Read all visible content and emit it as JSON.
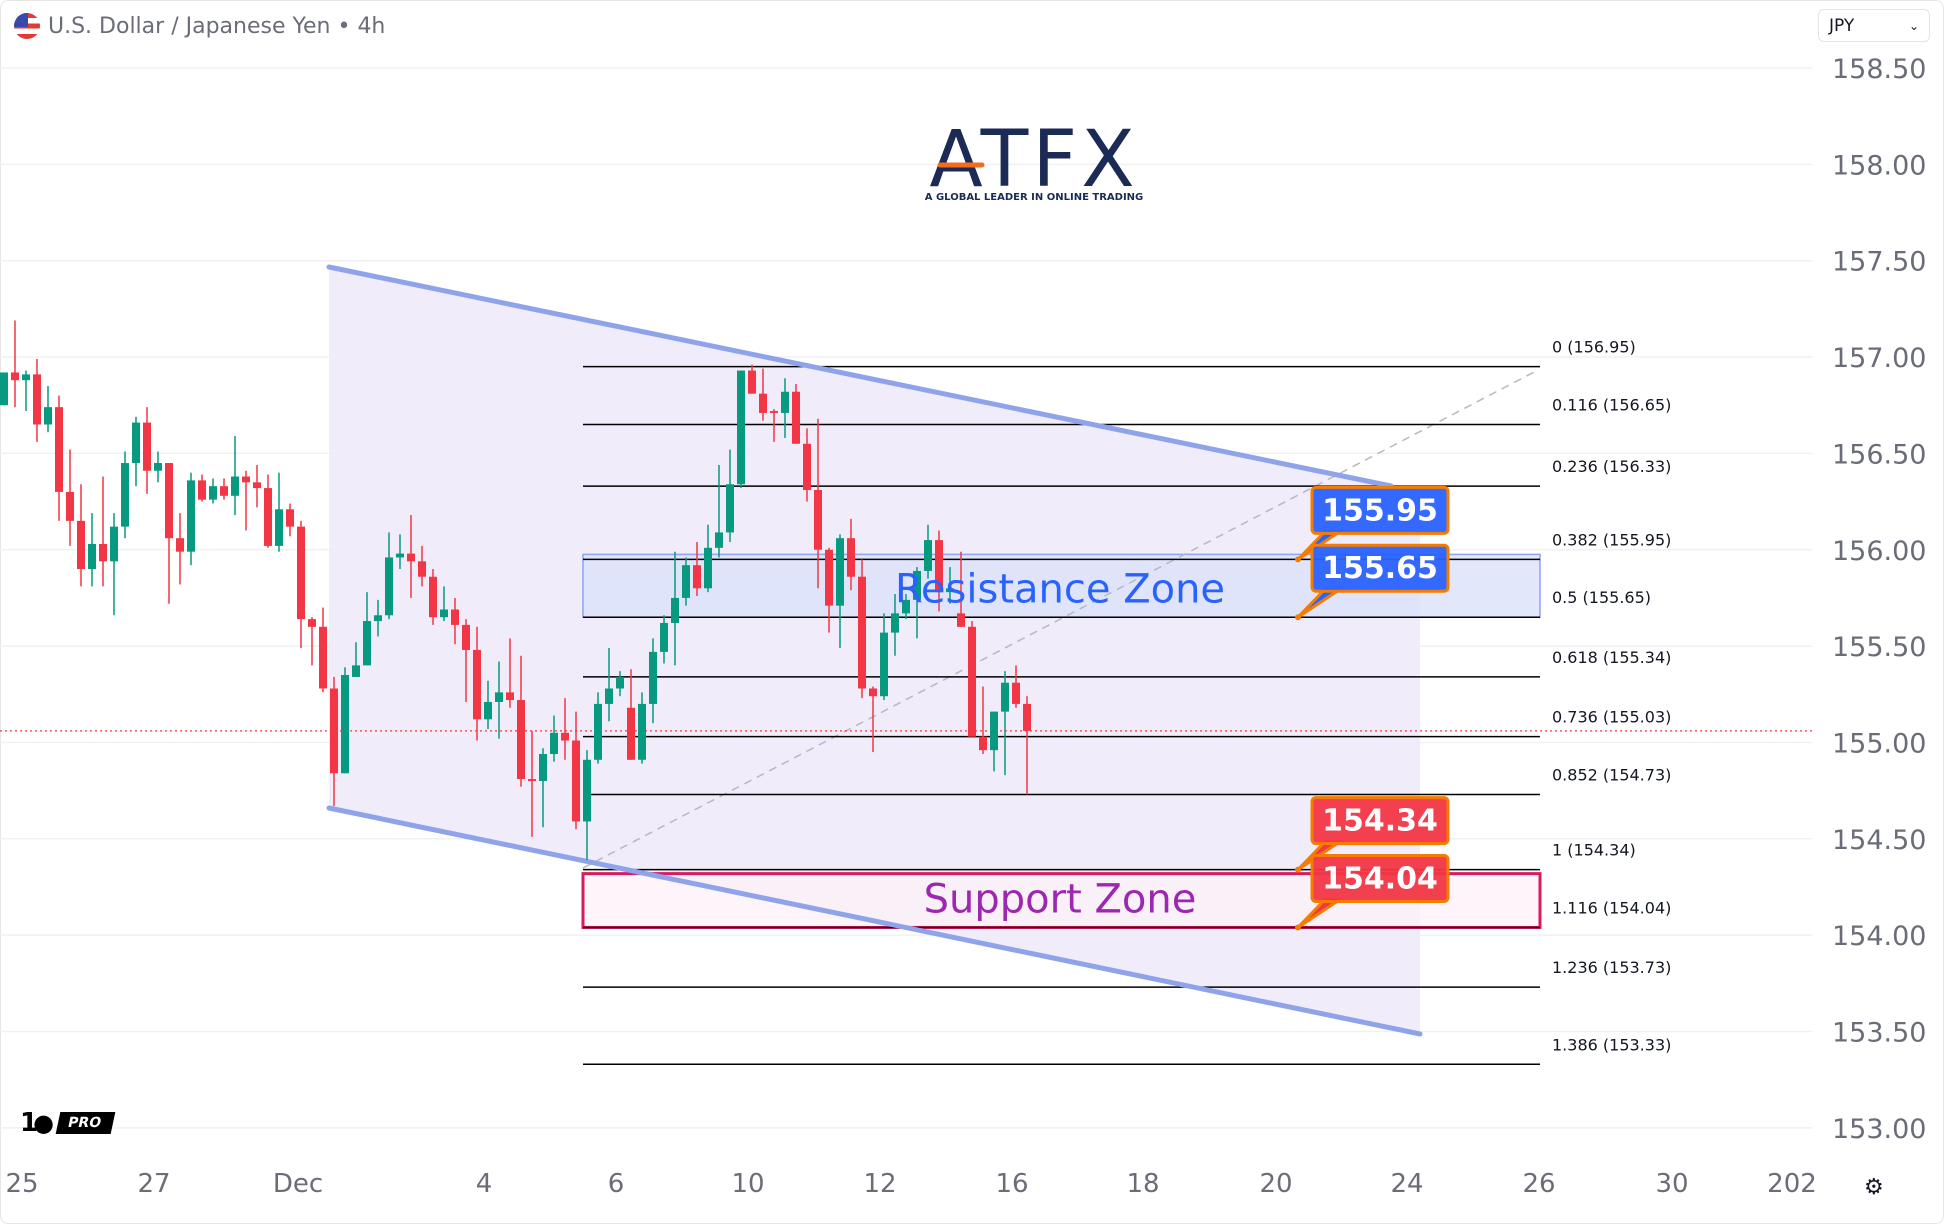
{
  "header": {
    "title": "U.S. Dollar / Japanese Yen • 4h",
    "flag_icon": "us-jp-flag-icon"
  },
  "currency_select": {
    "value": "JPY"
  },
  "logo": {
    "text": "ATFX",
    "tagline": "A GLOBAL LEADER IN ONLINE TRADING",
    "colors": {
      "navy": "#1b2b55",
      "orange": "#f26b21"
    }
  },
  "tv_logo": {
    "mark": "TV",
    "badge": "PRO"
  },
  "settings_icon": "gear-icon",
  "chart_data": {
    "type": "candlestick",
    "symbol": "USDJPY",
    "timeframe": "4h",
    "colors": {
      "up": "#089981",
      "down": "#f23645",
      "channel": "#8fa3ea",
      "channel_fill": "#eeeafa",
      "resistance": "#2962ff",
      "support_border": "#d81b60",
      "support_text": "#9c27b0",
      "callout_border": "#f57c00"
    },
    "ylim": [
      152.8,
      158.7
    ],
    "price_ticks": [
      "158.50",
      "158.00",
      "157.50",
      "157.00",
      "156.50",
      "156.00",
      "155.50",
      "155.00",
      "154.50",
      "154.00",
      "153.50",
      "153.00"
    ],
    "date_ticks": [
      "25",
      "27",
      "Dec",
      "4",
      "6",
      "10",
      "12",
      "16",
      "18",
      "20",
      "24",
      "26",
      "30",
      "202"
    ],
    "last_price": 155.06,
    "ohlc": [
      [
        156.75,
        156.92,
        156.75,
        156.92
      ],
      [
        156.92,
        157.19,
        156.74,
        156.88
      ],
      [
        156.88,
        156.93,
        156.72,
        156.91
      ],
      [
        156.91,
        156.99,
        156.56,
        156.65
      ],
      [
        156.65,
        156.85,
        156.61,
        156.74
      ],
      [
        156.74,
        156.8,
        156.15,
        156.3
      ],
      [
        156.3,
        156.52,
        156.02,
        156.15
      ],
      [
        156.15,
        156.34,
        155.81,
        155.9
      ],
      [
        155.9,
        156.19,
        155.81,
        156.03
      ],
      [
        156.03,
        156.38,
        155.81,
        155.94
      ],
      [
        155.94,
        156.19,
        155.66,
        156.12
      ],
      [
        156.12,
        156.51,
        156.06,
        156.45
      ],
      [
        156.45,
        156.69,
        156.33,
        156.66
      ],
      [
        156.66,
        156.74,
        156.29,
        156.41
      ],
      [
        156.41,
        156.51,
        156.35,
        156.45
      ],
      [
        156.45,
        156.45,
        155.72,
        156.06
      ],
      [
        156.06,
        156.19,
        155.82,
        155.99
      ],
      [
        155.99,
        156.4,
        155.92,
        156.36
      ],
      [
        156.36,
        156.39,
        156.25,
        156.26
      ],
      [
        156.26,
        156.37,
        156.24,
        156.33
      ],
      [
        156.33,
        156.37,
        156.26,
        156.28
      ],
      [
        156.28,
        156.59,
        156.18,
        156.38
      ],
      [
        156.38,
        156.41,
        156.1,
        156.35
      ],
      [
        156.35,
        156.44,
        156.22,
        156.32
      ],
      [
        156.32,
        156.39,
        156.01,
        156.02
      ],
      [
        156.02,
        156.4,
        155.99,
        156.21
      ],
      [
        156.21,
        156.24,
        156.07,
        156.12
      ],
      [
        156.12,
        156.15,
        155.49,
        155.64
      ],
      [
        155.64,
        155.65,
        155.4,
        155.6
      ],
      [
        155.6,
        155.7,
        155.26,
        155.28
      ],
      [
        155.28,
        155.34,
        154.67,
        154.84
      ],
      [
        154.84,
        155.39,
        154.84,
        155.35
      ],
      [
        155.34,
        155.52,
        155.34,
        155.4
      ],
      [
        155.4,
        155.78,
        155.4,
        155.63
      ],
      [
        155.63,
        155.74,
        155.55,
        155.66
      ],
      [
        155.66,
        156.09,
        155.64,
        155.96
      ],
      [
        155.96,
        156.08,
        155.9,
        155.98
      ],
      [
        155.98,
        156.18,
        155.75,
        155.94
      ],
      [
        155.94,
        156.02,
        155.81,
        155.86
      ],
      [
        155.86,
        155.9,
        155.61,
        155.65
      ],
      [
        155.65,
        155.81,
        155.63,
        155.69
      ],
      [
        155.69,
        155.75,
        155.51,
        155.61
      ],
      [
        155.61,
        155.64,
        155.21,
        155.48
      ],
      [
        155.48,
        155.6,
        155.01,
        155.12
      ],
      [
        155.12,
        155.32,
        155.07,
        155.21
      ],
      [
        155.21,
        155.42,
        155.02,
        155.26
      ],
      [
        155.26,
        155.54,
        155.18,
        155.22
      ],
      [
        155.22,
        155.45,
        154.77,
        154.81
      ],
      [
        154.81,
        155.06,
        154.51,
        154.8
      ],
      [
        154.8,
        154.97,
        154.56,
        154.94
      ],
      [
        154.94,
        155.14,
        154.9,
        155.05
      ],
      [
        155.05,
        155.23,
        154.91,
        155.01
      ],
      [
        155.01,
        155.16,
        154.55,
        154.59
      ],
      [
        154.59,
        154.96,
        154.39,
        154.91
      ],
      [
        154.91,
        155.26,
        154.89,
        155.2
      ],
      [
        155.2,
        155.49,
        155.11,
        155.28
      ],
      [
        155.28,
        155.37,
        155.24,
        155.34
      ],
      [
        155.18,
        155.38,
        154.91,
        154.91
      ],
      [
        154.91,
        155.26,
        154.89,
        155.2
      ],
      [
        155.2,
        155.54,
        155.1,
        155.47
      ],
      [
        155.47,
        155.66,
        155.41,
        155.62
      ],
      [
        155.62,
        155.99,
        155.4,
        155.75
      ],
      [
        155.75,
        155.96,
        155.71,
        155.92
      ],
      [
        155.92,
        156.04,
        155.76,
        155.8
      ],
      [
        155.8,
        156.13,
        155.78,
        156.01
      ],
      [
        156.01,
        156.44,
        155.96,
        156.09
      ],
      [
        156.09,
        156.52,
        156.04,
        156.34
      ],
      [
        156.34,
        156.93,
        156.32,
        156.93
      ],
      [
        156.93,
        156.96,
        156.81,
        156.81
      ],
      [
        156.81,
        156.94,
        156.67,
        156.71
      ],
      [
        156.72,
        156.73,
        156.56,
        156.71
      ],
      [
        156.71,
        156.89,
        156.58,
        156.82
      ],
      [
        156.82,
        156.86,
        156.55,
        156.55
      ],
      [
        156.55,
        156.63,
        156.25,
        156.31
      ],
      [
        156.31,
        156.68,
        155.8,
        156.0
      ],
      [
        156.0,
        156.01,
        155.57,
        155.71
      ],
      [
        155.71,
        156.08,
        155.49,
        156.06
      ],
      [
        156.06,
        156.16,
        155.79,
        155.86
      ],
      [
        155.86,
        155.95,
        155.23,
        155.28
      ],
      [
        155.28,
        155.29,
        154.95,
        155.24
      ],
      [
        155.24,
        155.67,
        155.22,
        155.57
      ],
      [
        155.57,
        155.77,
        155.45,
        155.67
      ],
      [
        155.67,
        155.77,
        155.64,
        155.74
      ],
      [
        155.74,
        155.91,
        155.54,
        155.89
      ],
      [
        155.89,
        156.13,
        155.85,
        156.05
      ],
      [
        156.05,
        156.1,
        155.68,
        155.78
      ],
      [
        155.78,
        155.91,
        155.72,
        155.8
      ],
      [
        155.67,
        155.99,
        155.6,
        155.6
      ],
      [
        155.6,
        155.63,
        155.03,
        155.03
      ],
      [
        155.03,
        155.29,
        154.94,
        154.96
      ],
      [
        154.96,
        155.16,
        154.85,
        155.16
      ],
      [
        155.16,
        155.37,
        154.83,
        155.31
      ],
      [
        155.31,
        155.4,
        155.18,
        155.2
      ],
      [
        155.2,
        155.24,
        154.73,
        155.06
      ]
    ],
    "fib_levels": [
      {
        "label": "0 (156.95)",
        "price": 156.95
      },
      {
        "label": "0.116 (156.65)",
        "price": 156.65
      },
      {
        "label": "0.236 (156.33)",
        "price": 156.33
      },
      {
        "label": "0.382 (155.95)",
        "price": 155.95
      },
      {
        "label": "0.5 (155.65)",
        "price": 155.65
      },
      {
        "label": "0.618 (155.34)",
        "price": 155.34
      },
      {
        "label": "0.736 (155.03)",
        "price": 155.03
      },
      {
        "label": "0.852 (154.73)",
        "price": 154.73
      },
      {
        "label": "1 (154.34)",
        "price": 154.34
      },
      {
        "label": "1.116 (154.04)",
        "price": 154.04
      },
      {
        "label": "1.236 (153.73)",
        "price": 153.73
      },
      {
        "label": "1.386 (153.33)",
        "price": 153.33
      }
    ],
    "zones": [
      {
        "label": "Resistance Zone",
        "top": 155.95,
        "bottom": 155.65,
        "kind": "resistance"
      },
      {
        "label": "Support Zone",
        "top": 154.34,
        "bottom": 154.04,
        "kind": "support"
      }
    ],
    "callouts": [
      {
        "text": "155.95",
        "price": 155.95,
        "color": "#2962ff"
      },
      {
        "text": "155.65",
        "price": 155.65,
        "color": "#2962ff"
      },
      {
        "text": "154.34",
        "price": 154.34,
        "color": "#f23645"
      },
      {
        "text": "154.04",
        "price": 154.04,
        "color": "#f23645"
      }
    ]
  }
}
